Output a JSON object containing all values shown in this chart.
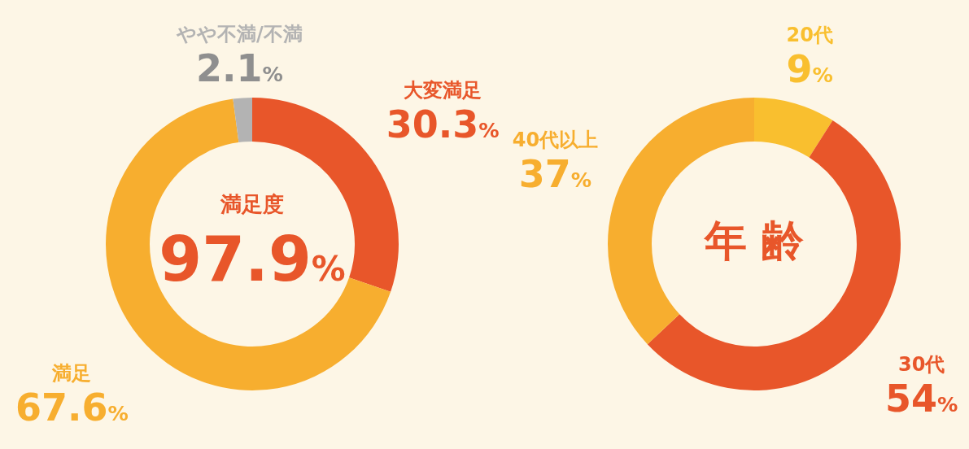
{
  "chart_data": [
    {
      "type": "donut",
      "categories": [
        "大変満足",
        "満足",
        "やや不満/不満"
      ],
      "values": [
        30.3,
        67.6,
        2.1
      ],
      "colors": [
        "#e8562a",
        "#f7ae2f",
        "#b3b3b3"
      ],
      "value_labels": [
        "30.3%",
        "67.6%",
        "2.1%"
      ],
      "annotations": [
        "満足度",
        "97.9%"
      ],
      "legend": false
    },
    {
      "type": "donut",
      "title": "年 齢",
      "categories": [
        "20代",
        "30代",
        "40代以上"
      ],
      "values": [
        9,
        54,
        37
      ],
      "colors": [
        "#f9bf2f",
        "#e8562a",
        "#f7ae2f"
      ],
      "value_labels": [
        "9%",
        "54%",
        "37%"
      ],
      "legend": false
    }
  ]
}
